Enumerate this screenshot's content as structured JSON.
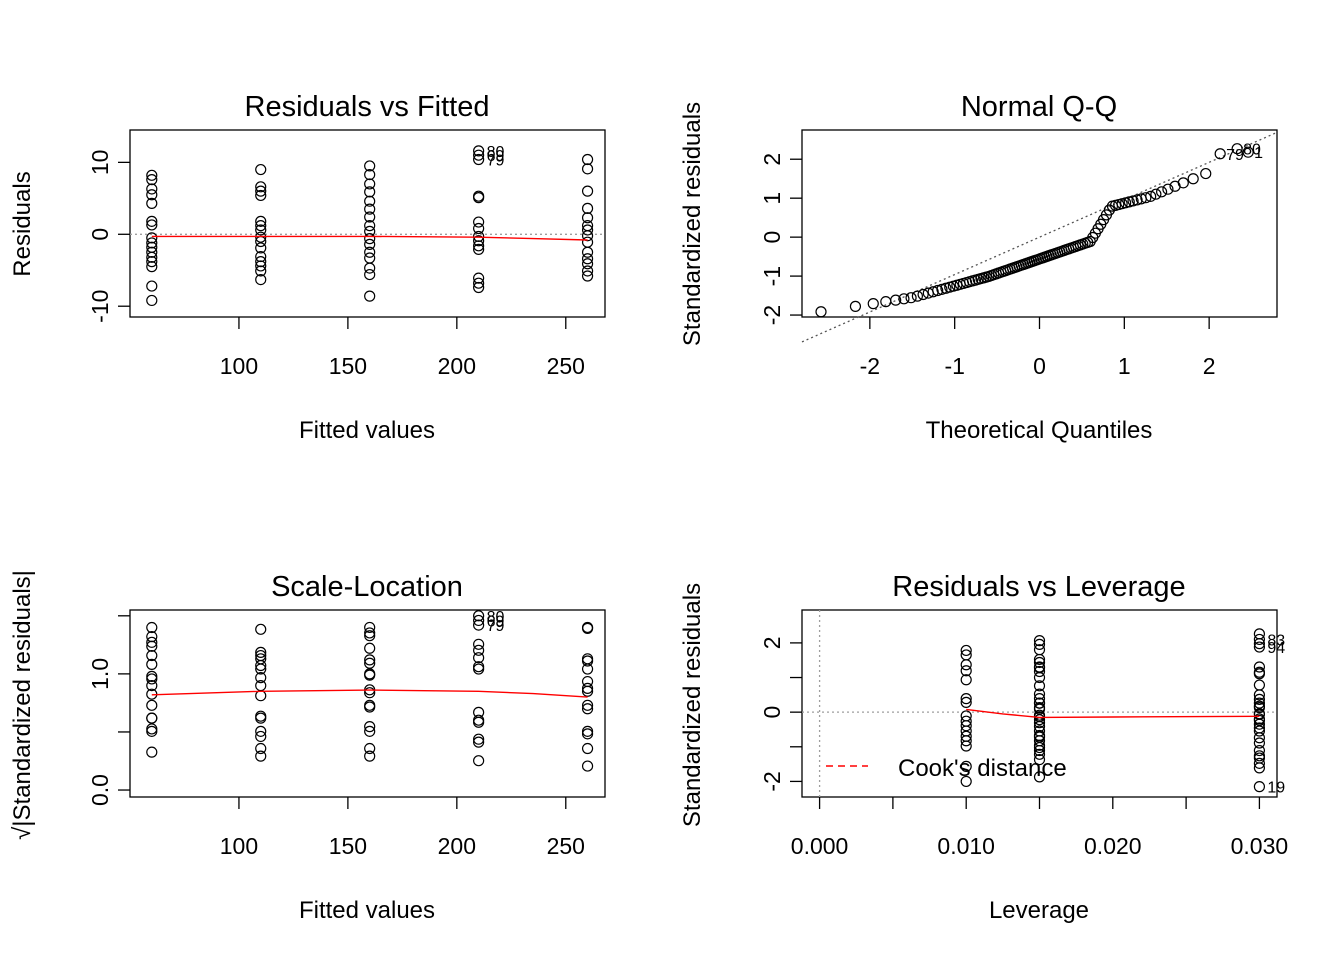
{
  "chart_data": [
    {
      "type": "scatter",
      "title": "Residuals vs Fitted",
      "xlabel": "Fitted values",
      "ylabel": "Residuals",
      "xlim": [
        50,
        268
      ],
      "ylim": [
        -11.5,
        14.5
      ],
      "xticks": [
        100,
        150,
        200,
        250
      ],
      "yticks": [
        -10,
        0,
        10
      ],
      "groups": [
        {
          "x": 60,
          "y": [
            8.2,
            7.6,
            6.3,
            5.5,
            4.3,
            1.8,
            1.3,
            -0.5,
            -1.2,
            -1.8,
            -2.5,
            -3.2,
            -3.8,
            -4.5,
            -7.2,
            -9.2
          ]
        },
        {
          "x": 110,
          "y": [
            9,
            6.6,
            6,
            5.4,
            1.8,
            1.2,
            0.6,
            -0.4,
            -1,
            -1.9,
            -3.1,
            -3.8,
            -4.4,
            -5.1,
            -6.3
          ]
        },
        {
          "x": 160,
          "y": [
            9.5,
            8.3,
            7,
            5.9,
            4.6,
            3.5,
            2.4,
            1.2,
            0.4,
            -0.6,
            -1.4,
            -2.5,
            -3.3,
            -4.7,
            -5.6,
            -8.6
          ]
        },
        {
          "x": 210,
          "y": [
            5.3,
            5.1,
            1.7,
            0.8,
            -0.3,
            -0.9,
            -1.6,
            -2.1,
            -6.1,
            -6.8,
            -7.4
          ]
        },
        {
          "x": 260,
          "y": [
            10.4,
            9.1,
            6,
            3.6,
            2.3,
            1.2,
            0.6,
            -0.2,
            -1.1,
            -2.5,
            -3.4,
            -4.1,
            -5.1,
            -5.8
          ]
        }
      ],
      "labelled": [
        {
          "x": 210,
          "y": 11.6,
          "label": "80"
        },
        {
          "x": 210,
          "y": 11.0,
          "label": "69"
        },
        {
          "x": 210,
          "y": 10.4,
          "label": "79"
        }
      ],
      "smooth": {
        "x": [
          60,
          110,
          160,
          210,
          235,
          260
        ],
        "y": [
          -0.3,
          -0.3,
          -0.3,
          -0.4,
          -0.6,
          -0.8
        ]
      },
      "refline_y": 0
    },
    {
      "type": "scatter",
      "title": "Normal Q-Q",
      "xlabel": "Theoretical Quantiles",
      "ylabel": "Standardized residuals",
      "xlim": [
        -2.8,
        2.8
      ],
      "ylim": [
        -2.05,
        2.75
      ],
      "xticks": [
        -2,
        -1,
        0,
        1,
        2
      ],
      "yticks": [
        -2,
        -1,
        0,
        1,
        2
      ],
      "n": 100,
      "ref_line": {
        "intercept": 0,
        "slope": 0.96
      },
      "labelled": [
        {
          "x": 2.33,
          "y": 2.27,
          "label": "80"
        },
        {
          "x": 2.13,
          "y": 2.14,
          "label": "79"
        },
        {
          "x": 2.46,
          "y": 2.18,
          "label": "1"
        }
      ]
    },
    {
      "type": "scatter",
      "title": "Scale-Location",
      "xlabel": "Fitted values",
      "ylabel": "√|Standardized residuals|",
      "xlim": [
        50,
        268
      ],
      "ylim": [
        -0.06,
        1.55
      ],
      "xticks": [
        100,
        150,
        200,
        250
      ],
      "yticks": [
        0.0,
        0.5,
        1.0,
        1.5
      ],
      "yticklabels": [
        "0.0",
        "",
        "1.0",
        ""
      ],
      "smooth": {
        "x": [
          60,
          110,
          160,
          210,
          235,
          260
        ],
        "y": [
          0.82,
          0.85,
          0.86,
          0.85,
          0.83,
          0.8
        ]
      },
      "labelled": [
        {
          "x": 210,
          "y": 1.5,
          "label": "80"
        },
        {
          "x": 210,
          "y": 1.46,
          "label": "69"
        },
        {
          "x": 210,
          "y": 1.42,
          "label": "79"
        }
      ]
    },
    {
      "type": "scatter",
      "title": "Residuals vs Leverage",
      "xlabel": "Leverage",
      "ylabel": "Standardized residuals",
      "xlim": [
        -0.0012,
        0.0312
      ],
      "ylim": [
        -2.45,
        2.95
      ],
      "xticks": [
        0.0,
        0.01,
        0.02,
        0.03
      ],
      "xticklabels": [
        "0.000",
        "0.010",
        "0.020",
        "0.030"
      ],
      "yticks": [
        -2,
        -1,
        0,
        1,
        2
      ],
      "yticklabels": [
        "-2",
        "",
        "0",
        "",
        "2"
      ],
      "groups_at_leverage": [
        0.01,
        0.015,
        0.03
      ],
      "smooth": {
        "x": [
          0.01,
          0.0125,
          0.015,
          0.02,
          0.03
        ],
        "y": [
          0.08,
          -0.05,
          -0.15,
          -0.14,
          -0.12
        ]
      },
      "labelled": [
        {
          "x": 0.03,
          "y": 2.1,
          "label": "83"
        },
        {
          "x": 0.03,
          "y": 1.88,
          "label": "94"
        },
        {
          "x": 0.03,
          "y": -2.15,
          "label": "19"
        }
      ],
      "legend": {
        "label": "Cook's distance",
        "position": "bottom-left"
      }
    }
  ],
  "colors": {
    "smooth": "#ff0000",
    "reference": "#9e9e9e"
  }
}
